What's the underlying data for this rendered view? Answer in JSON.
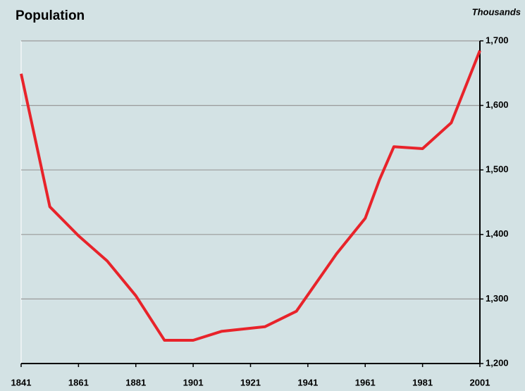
{
  "chart_data": {
    "type": "line",
    "title": "Population",
    "y_label": "Thousands",
    "x": [
      1841,
      1851,
      1861,
      1871,
      1881,
      1891,
      1901,
      1911,
      1926,
      1937,
      1951,
      1961,
      1966,
      1971,
      1981,
      1991,
      2001
    ],
    "series": [
      {
        "name": "Population",
        "color": "#e8232a",
        "values": [
          1649,
          1443,
          1398,
          1359,
          1305,
          1236,
          1236,
          1250,
          1257,
          1281,
          1370,
          1425,
          1485,
          1536,
          1533,
          1573,
          1685
        ]
      }
    ],
    "xlim": [
      1841,
      2001
    ],
    "xticks": [
      1841,
      1861,
      1881,
      1901,
      1921,
      1941,
      1961,
      1981,
      2001
    ],
    "ylim": [
      1200,
      1700
    ],
    "yticks": [
      {
        "value": 1200,
        "label": "1,200"
      },
      {
        "value": 1300,
        "label": "1,300"
      },
      {
        "value": 1400,
        "label": "1,400"
      },
      {
        "value": 1500,
        "label": "1,500"
      },
      {
        "value": 1600,
        "label": "1,600"
      },
      {
        "value": 1700,
        "label": "1,700"
      }
    ],
    "grid": true
  }
}
